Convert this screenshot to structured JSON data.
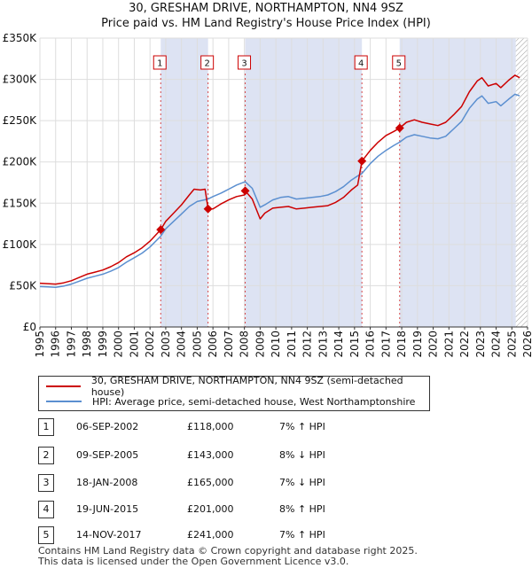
{
  "title": "30, GRESHAM DRIVE, NORTHAMPTON, NN4 9SZ",
  "subtitle": "Price paid vs. HM Land Registry's House Price Index (HPI)",
  "chart_data": {
    "type": "line",
    "title": "30, GRESHAM DRIVE, NORTHAMPTON, NN4 9SZ",
    "subtitle": "Price paid vs. HM Land Registry's House Price Index (HPI)",
    "xlim": [
      1995,
      2026
    ],
    "ylim": [
      0,
      350000
    ],
    "y_ticks": [
      {
        "value": 0,
        "label": "£0"
      },
      {
        "value": 50000,
        "label": "£50K"
      },
      {
        "value": 100000,
        "label": "£100K"
      },
      {
        "value": 150000,
        "label": "£150K"
      },
      {
        "value": 200000,
        "label": "£200K"
      },
      {
        "value": 250000,
        "label": "£250K"
      },
      {
        "value": 300000,
        "label": "£300K"
      },
      {
        "value": 350000,
        "label": "£350K"
      }
    ],
    "x_ticks": [
      "1995",
      "1996",
      "1997",
      "1998",
      "1999",
      "2000",
      "2001",
      "2002",
      "2003",
      "2004",
      "2005",
      "2006",
      "2007",
      "2008",
      "2009",
      "2010",
      "2011",
      "2012",
      "2013",
      "2014",
      "2015",
      "2016",
      "2017",
      "2018",
      "2019",
      "2020",
      "2021",
      "2022",
      "2023",
      "2024",
      "2025",
      "2026"
    ],
    "grid": true,
    "legend_position": "below",
    "series": [
      {
        "name": "30, GRESHAM DRIVE, NORTHAMPTON, NN4 9SZ (semi-detached house)",
        "color": "#cc0000",
        "points": [
          [
            1995.0,
            53000
          ],
          [
            1995.5,
            52500
          ],
          [
            1996.0,
            52000
          ],
          [
            1996.5,
            53500
          ],
          [
            1997.0,
            56000
          ],
          [
            1997.5,
            60000
          ],
          [
            1998.0,
            64000
          ],
          [
            1998.5,
            66500
          ],
          [
            1999.0,
            69000
          ],
          [
            1999.5,
            73000
          ],
          [
            2000.0,
            78000
          ],
          [
            2000.5,
            85000
          ],
          [
            2001.0,
            90000
          ],
          [
            2001.5,
            96000
          ],
          [
            2002.0,
            104000
          ],
          [
            2002.68,
            118000
          ],
          [
            2003.0,
            128000
          ],
          [
            2003.5,
            138000
          ],
          [
            2004.0,
            148000
          ],
          [
            2004.5,
            160000
          ],
          [
            2004.8,
            167000
          ],
          [
            2005.2,
            166000
          ],
          [
            2005.5,
            167000
          ],
          [
            2005.69,
            143000
          ],
          [
            2006.0,
            143000
          ],
          [
            2006.5,
            149000
          ],
          [
            2007.0,
            154000
          ],
          [
            2007.5,
            158000
          ],
          [
            2008.0,
            160000
          ],
          [
            2008.05,
            165000
          ],
          [
            2008.5,
            155000
          ],
          [
            2009.0,
            131000
          ],
          [
            2009.3,
            138000
          ],
          [
            2009.8,
            144000
          ],
          [
            2010.3,
            145000
          ],
          [
            2010.8,
            146000
          ],
          [
            2011.3,
            143000
          ],
          [
            2011.8,
            144000
          ],
          [
            2012.3,
            145000
          ],
          [
            2012.8,
            146000
          ],
          [
            2013.3,
            147000
          ],
          [
            2013.8,
            151000
          ],
          [
            2014.3,
            157000
          ],
          [
            2014.8,
            166000
          ],
          [
            2015.2,
            172000
          ],
          [
            2015.47,
            201000
          ],
          [
            2016.0,
            214000
          ],
          [
            2016.5,
            224000
          ],
          [
            2017.0,
            232000
          ],
          [
            2017.5,
            237000
          ],
          [
            2017.87,
            241000
          ],
          [
            2018.3,
            248000
          ],
          [
            2018.8,
            251000
          ],
          [
            2019.3,
            248000
          ],
          [
            2019.8,
            246000
          ],
          [
            2020.3,
            244000
          ],
          [
            2020.8,
            248000
          ],
          [
            2021.3,
            257000
          ],
          [
            2021.8,
            267000
          ],
          [
            2022.3,
            285000
          ],
          [
            2022.8,
            298000
          ],
          [
            2023.1,
            302000
          ],
          [
            2023.5,
            292000
          ],
          [
            2024.0,
            295000
          ],
          [
            2024.3,
            290000
          ],
          [
            2024.8,
            299000
          ],
          [
            2025.2,
            305000
          ],
          [
            2025.5,
            302000
          ]
        ]
      },
      {
        "name": "HPI: Average price, semi-detached house, West Northamptonshire",
        "color": "#5b8fd0",
        "points": [
          [
            1995.0,
            49000
          ],
          [
            1995.5,
            48500
          ],
          [
            1996.0,
            48000
          ],
          [
            1996.5,
            49500
          ],
          [
            1997.0,
            52000
          ],
          [
            1997.5,
            55500
          ],
          [
            1998.0,
            59000
          ],
          [
            1998.5,
            61500
          ],
          [
            1999.0,
            64000
          ],
          [
            1999.5,
            67500
          ],
          [
            2000.0,
            72000
          ],
          [
            2000.5,
            78500
          ],
          [
            2001.0,
            84000
          ],
          [
            2001.5,
            89500
          ],
          [
            2002.0,
            97000
          ],
          [
            2002.68,
            110000
          ],
          [
            2003.0,
            119000
          ],
          [
            2003.5,
            128000
          ],
          [
            2004.0,
            137000
          ],
          [
            2004.5,
            146000
          ],
          [
            2005.0,
            152000
          ],
          [
            2005.69,
            155000
          ],
          [
            2006.0,
            158000
          ],
          [
            2006.5,
            162000
          ],
          [
            2007.0,
            167000
          ],
          [
            2007.5,
            172000
          ],
          [
            2008.05,
            176000
          ],
          [
            2008.5,
            168000
          ],
          [
            2009.0,
            145000
          ],
          [
            2009.3,
            148000
          ],
          [
            2009.8,
            154000
          ],
          [
            2010.3,
            157000
          ],
          [
            2010.8,
            158000
          ],
          [
            2011.3,
            155000
          ],
          [
            2011.8,
            156000
          ],
          [
            2012.3,
            157000
          ],
          [
            2012.8,
            158000
          ],
          [
            2013.3,
            160000
          ],
          [
            2013.8,
            164000
          ],
          [
            2014.3,
            170000
          ],
          [
            2014.8,
            178000
          ],
          [
            2015.2,
            183000
          ],
          [
            2015.47,
            186000
          ],
          [
            2016.0,
            198000
          ],
          [
            2016.5,
            207000
          ],
          [
            2017.0,
            214000
          ],
          [
            2017.5,
            220000
          ],
          [
            2017.87,
            224000
          ],
          [
            2018.3,
            230000
          ],
          [
            2018.8,
            233000
          ],
          [
            2019.3,
            231000
          ],
          [
            2019.8,
            229000
          ],
          [
            2020.3,
            228000
          ],
          [
            2020.8,
            231000
          ],
          [
            2021.3,
            240000
          ],
          [
            2021.8,
            249000
          ],
          [
            2022.3,
            265000
          ],
          [
            2022.8,
            276000
          ],
          [
            2023.1,
            280000
          ],
          [
            2023.5,
            271000
          ],
          [
            2024.0,
            273000
          ],
          [
            2024.3,
            268000
          ],
          [
            2024.8,
            276000
          ],
          [
            2025.2,
            282000
          ],
          [
            2025.5,
            280000
          ]
        ]
      }
    ],
    "sales": [
      {
        "num": "1",
        "x": 2002.68,
        "price": 118000
      },
      {
        "num": "2",
        "x": 2005.69,
        "price": 143000
      },
      {
        "num": "3",
        "x": 2008.05,
        "price": 165000
      },
      {
        "num": "4",
        "x": 2015.47,
        "price": 201000
      },
      {
        "num": "5",
        "x": 2017.87,
        "price": 241000
      }
    ],
    "shaded_ranges": [
      [
        2002.68,
        2005.69
      ],
      [
        2008.05,
        2015.47
      ],
      [
        2017.87,
        2025.25
      ]
    ],
    "hatch_from": 2025.25
  },
  "legend": {
    "property": "30, GRESHAM DRIVE, NORTHAMPTON, NN4 9SZ (semi-detached house)",
    "hpi": "HPI: Average price, semi-detached house, West Northamptonshire",
    "property_color": "#cc0000",
    "hpi_color": "#5b8fd0"
  },
  "transactions": [
    {
      "num": "1",
      "date": "06-SEP-2002",
      "price": "£118,000",
      "rel": "7% ↑ HPI"
    },
    {
      "num": "2",
      "date": "09-SEP-2005",
      "price": "£143,000",
      "rel": "8% ↓ HPI"
    },
    {
      "num": "3",
      "date": "18-JAN-2008",
      "price": "£165,000",
      "rel": "7% ↓ HPI"
    },
    {
      "num": "4",
      "date": "19-JUN-2015",
      "price": "£201,000",
      "rel": "8% ↑ HPI"
    },
    {
      "num": "5",
      "date": "14-NOV-2017",
      "price": "£241,000",
      "rel": "7% ↑ HPI"
    }
  ],
  "footer": {
    "line1": "Contains HM Land Registry data © Crown copyright and database right 2025.",
    "line2": "This data is licensed under the Open Government Licence v3.0."
  }
}
